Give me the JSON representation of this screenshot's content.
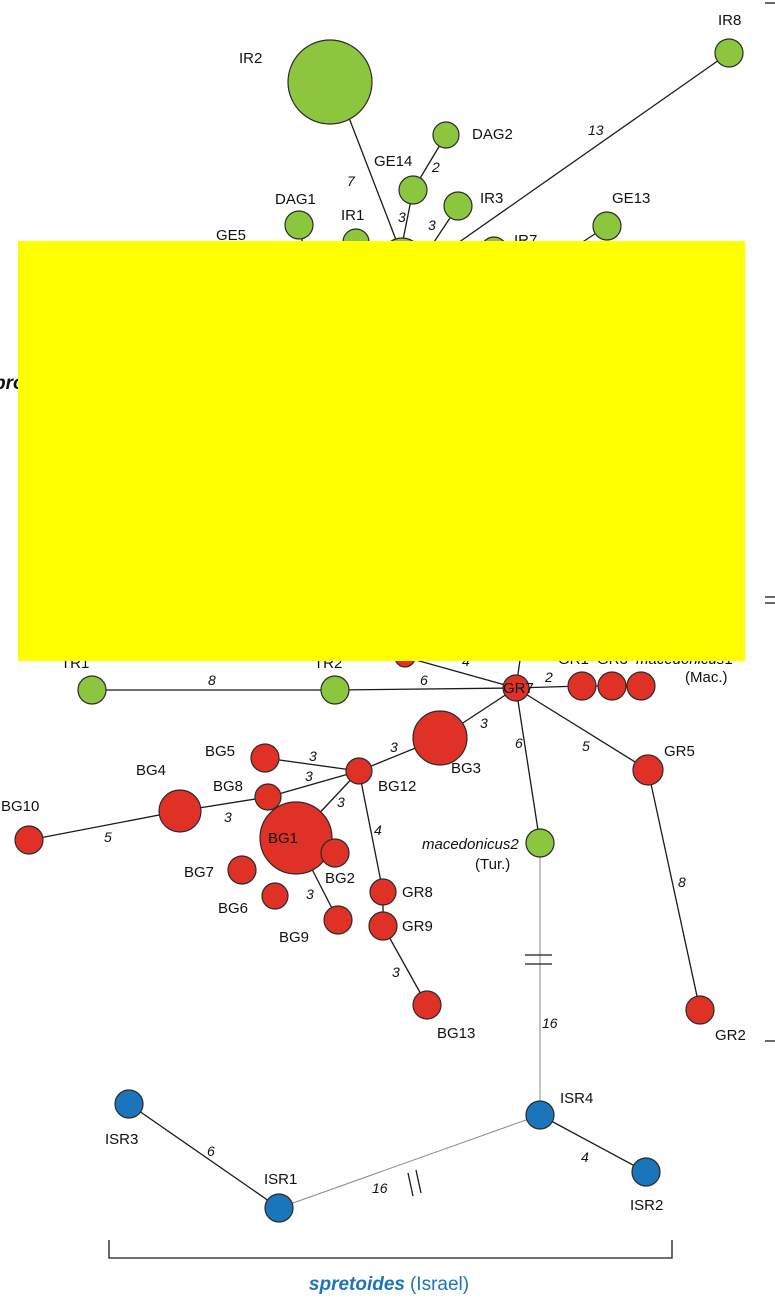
{
  "colors": {
    "green": "#8cc63f",
    "red": "#e03127",
    "blue": "#1b75bb",
    "redaction": "#ffff00",
    "species_label": "#1b75bb"
  },
  "top_network": {
    "nodes": {
      "IR2": "IR2",
      "IR8": "IR8",
      "DAG2": "DAG2",
      "GE14": "GE14",
      "IR3": "IR3",
      "DAG1": "DAG1",
      "IR1": "IR1",
      "GE13": "GE13",
      "GE5": "GE5",
      "IR7": "IR7"
    },
    "edges": {
      "ir2": "7",
      "ir8": "13",
      "dag2": "2",
      "ge14": "3",
      "ir3": "3"
    }
  },
  "bottom_network": {
    "nodes": {
      "TR1": "TR1",
      "TR2": "TR2",
      "GR7": "GR7",
      "GR1": "GR1",
      "GR3": "GR3",
      "mac1_a": "macedonicus",
      "mac1_b": "1",
      "mac1_loc": "(Mac.)",
      "GR5": "GR5",
      "GR2": "GR2",
      "GR8": "GR8",
      "GR9": "GR9",
      "BG13": "BG13",
      "BG1": "BG1",
      "BG2": "BG2",
      "BG3": "BG3",
      "BG4": "BG4",
      "BG5": "BG5",
      "BG6": "BG6",
      "BG7": "BG7",
      "BG8": "BG8",
      "BG9": "BG9",
      "BG10": "BG10",
      "BG12": "BG12",
      "mac2": "macedonicus2",
      "mac2_loc": "(Tur.)"
    },
    "edges": {
      "tr1_tr2": "8",
      "tr2_gr7": "6",
      "gr7_top": "4",
      "gr7_mac1": "2",
      "gr7_bg3": "3",
      "gr7_mac2": "6",
      "gr7_gr5": "5",
      "gr5_gr2": "8",
      "bg3_bg12": "3",
      "bg12_bg5": "3",
      "bg12_bg8": "3",
      "bg12_bg1": "3",
      "bg12_gr8": "4",
      "bg4_bg8": "3",
      "bg10_bg4": "5",
      "bg1_bg9": "3",
      "gr9_bg13": "3",
      "mac2_isr4": "16"
    }
  },
  "spretoides": {
    "nodes": {
      "ISR1": "ISR1",
      "ISR2": "ISR2",
      "ISR3": "ISR3",
      "ISR4": "ISR4"
    },
    "edges": {
      "isr3_isr1": "6",
      "isr1_isr4": "16",
      "isr4_isr2": "4"
    },
    "label_species": "spretoides",
    "label_region": "(Israel)"
  },
  "cropped_text": {
    "left_fragment": "pro"
  }
}
